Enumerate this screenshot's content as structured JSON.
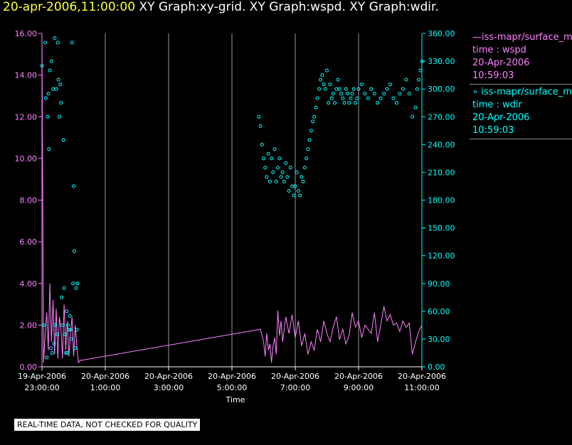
{
  "title": {
    "timestamp": "20-apr-2006,11:00:00",
    "graphs": "XY Graph:xy-grid.  XY Graph:wspd.  XY Graph:wdir."
  },
  "notice": "REAL-TIME DATA, NOT CHECKED FOR QUALITY",
  "legend": {
    "series1": {
      "name": "iss-mapr/surface_m",
      "field": "time : wspd",
      "date": "20-Apr-2006",
      "time": "10:59:03"
    },
    "series2": {
      "name": "iss-mapr/surface_m",
      "field": "time : wdir",
      "date": "20-Apr-2006",
      "time": "10:59:03"
    }
  },
  "colors": {
    "wspd": "#ff80ff",
    "wdir": "#00ffff",
    "left_axis": "#ff80ff",
    "right_axis": "#00ffff",
    "grid": "#9a9a9a",
    "title_ts": "#ffff3c"
  },
  "chart_data": {
    "type": "line",
    "xlabel": "Time",
    "x_ticks": [
      {
        "hours": 0,
        "date": "19-Apr-2006",
        "time": "23:00:00"
      },
      {
        "hours": 2,
        "date": "20-Apr-2006",
        "time": "1:00:00"
      },
      {
        "hours": 4,
        "date": "20-Apr-2006",
        "time": "3:00:00"
      },
      {
        "hours": 6,
        "date": "20-Apr-2006",
        "time": "5:00:00"
      },
      {
        "hours": 8,
        "date": "20-Apr-2006",
        "time": "7:00:00"
      },
      {
        "hours": 10,
        "date": "20-Apr-2006",
        "time": "9:00:00"
      },
      {
        "hours": 12,
        "date": "20-Apr-2006",
        "time": "11:00:00"
      }
    ],
    "xlim": [
      0,
      12
    ],
    "y_left": {
      "ylim": [
        0,
        16
      ],
      "ticks": [
        "0.00",
        "2.00",
        "4.00",
        "6.00",
        "8.00",
        "10.00",
        "12.00",
        "14.00",
        "16.00"
      ]
    },
    "y_right": {
      "ylim": [
        0,
        360
      ],
      "ticks": [
        "0.00",
        "30.00",
        "60.00",
        "90.00",
        "120.00",
        "150.00",
        "180.00",
        "210.00",
        "240.00",
        "270.00",
        "300.00",
        "330.00",
        "360.00"
      ]
    },
    "grid": "vertical",
    "series": [
      {
        "name": "time : wspd",
        "axis": "left",
        "style": "line",
        "x": [
          0.0,
          0.05,
          0.1,
          0.15,
          0.2,
          0.25,
          0.3,
          0.35,
          0.4,
          0.45,
          0.5,
          0.55,
          0.6,
          0.65,
          0.7,
          0.75,
          0.8,
          0.85,
          0.9,
          0.95,
          1.0,
          1.05,
          1.1,
          1.15,
          1.2,
          6.9,
          7.0,
          7.05,
          7.1,
          7.15,
          7.2,
          7.25,
          7.3,
          7.35,
          7.4,
          7.45,
          7.5,
          7.55,
          7.6,
          7.7,
          7.8,
          7.9,
          8.0,
          8.1,
          8.2,
          8.3,
          8.4,
          8.5,
          8.6,
          8.7,
          8.8,
          8.9,
          9.0,
          9.1,
          9.2,
          9.3,
          9.4,
          9.5,
          9.6,
          9.7,
          9.8,
          9.9,
          10.0,
          10.1,
          10.2,
          10.3,
          10.4,
          10.5,
          10.6,
          10.7,
          10.8,
          10.9,
          11.0,
          11.1,
          11.2,
          11.3,
          11.4,
          11.5,
          11.6,
          11.7,
          11.8,
          11.9,
          12.0
        ],
        "y": [
          16.0,
          0.2,
          1.6,
          2.6,
          0.8,
          4.0,
          1.2,
          3.2,
          0.6,
          2.8,
          0.4,
          2.4,
          1.8,
          0.4,
          3.0,
          0.8,
          2.2,
          0.5,
          1.6,
          2.4,
          0.5,
          2.0,
          1.0,
          0.2,
          0.3,
          1.8,
          1.2,
          0.5,
          1.6,
          0.8,
          1.1,
          0.2,
          1.0,
          1.4,
          0.6,
          2.7,
          1.5,
          2.2,
          1.2,
          2.4,
          1.6,
          2.5,
          1.4,
          2.2,
          1.0,
          1.6,
          0.6,
          1.2,
          0.8,
          1.8,
          1.2,
          2.2,
          1.6,
          1.2,
          1.9,
          2.4,
          1.3,
          1.8,
          1.1,
          1.5,
          2.6,
          1.9,
          2.2,
          1.4,
          2.0,
          1.8,
          1.6,
          2.6,
          1.2,
          2.0,
          2.9,
          2.2,
          2.5,
          2.0,
          2.1,
          1.7,
          2.2,
          1.9,
          2.1,
          0.6,
          1.2,
          1.7,
          2.0
        ]
      },
      {
        "name": "time : wdir",
        "axis": "right",
        "style": "markers",
        "x": [
          0.0,
          0.05,
          0.1,
          0.12,
          0.15,
          0.18,
          0.2,
          0.22,
          0.25,
          0.28,
          0.3,
          0.32,
          0.35,
          0.38,
          0.4,
          0.42,
          0.45,
          0.48,
          0.5,
          0.52,
          0.55,
          0.58,
          0.6,
          0.62,
          0.65,
          0.68,
          0.7,
          0.72,
          0.75,
          0.78,
          0.8,
          0.82,
          0.85,
          0.88,
          0.9,
          0.92,
          0.95,
          0.98,
          1.0,
          1.02,
          1.05,
          1.08,
          1.1,
          1.12,
          6.85,
          6.9,
          6.95,
          7.0,
          7.05,
          7.1,
          7.15,
          7.2,
          7.25,
          7.3,
          7.35,
          7.4,
          7.45,
          7.5,
          7.55,
          7.6,
          7.65,
          7.7,
          7.75,
          7.8,
          7.85,
          7.9,
          7.95,
          8.0,
          8.05,
          8.1,
          8.15,
          8.2,
          8.25,
          8.3,
          8.35,
          8.4,
          8.45,
          8.5,
          8.55,
          8.6,
          8.65,
          8.7,
          8.75,
          8.8,
          8.85,
          8.9,
          8.95,
          9.0,
          9.05,
          9.1,
          9.15,
          9.2,
          9.25,
          9.3,
          9.35,
          9.4,
          9.45,
          9.5,
          9.55,
          9.6,
          9.65,
          9.7,
          9.75,
          9.8,
          9.85,
          9.9,
          9.95,
          10.0,
          10.1,
          10.2,
          10.3,
          10.4,
          10.5,
          10.6,
          10.7,
          10.8,
          10.9,
          11.0,
          11.1,
          11.2,
          11.3,
          11.4,
          11.5,
          11.6,
          11.7,
          11.8,
          11.85,
          11.9,
          11.95,
          12.0
        ],
        "y": [
          325,
          45,
          350,
          290,
          10,
          270,
          295,
          235,
          320,
          20,
          330,
          15,
          300,
          25,
          355,
          45,
          300,
          35,
          350,
          310,
          270,
          305,
          285,
          75,
          45,
          245,
          85,
          35,
          15,
          60,
          15,
          45,
          40,
          55,
          40,
          30,
          350,
          90,
          195,
          125,
          20,
          85,
          40,
          90,
          270,
          260,
          240,
          225,
          215,
          205,
          230,
          200,
          225,
          210,
          235,
          200,
          215,
          225,
          205,
          210,
          200,
          220,
          205,
          190,
          215,
          195,
          185,
          195,
          210,
          190,
          185,
          205,
          200,
          215,
          225,
          235,
          245,
          255,
          265,
          270,
          280,
          290,
          300,
          310,
          315,
          305,
          300,
          320,
          285,
          305,
          290,
          295,
          285,
          300,
          310,
          300,
          295,
          290,
          285,
          300,
          295,
          285,
          290,
          295,
          300,
          285,
          290,
          300,
          305,
          295,
          290,
          300,
          295,
          285,
          290,
          295,
          300,
          305,
          290,
          285,
          295,
          300,
          310,
          295,
          270,
          280,
          300,
          310,
          320,
          330
        ]
      }
    ]
  }
}
